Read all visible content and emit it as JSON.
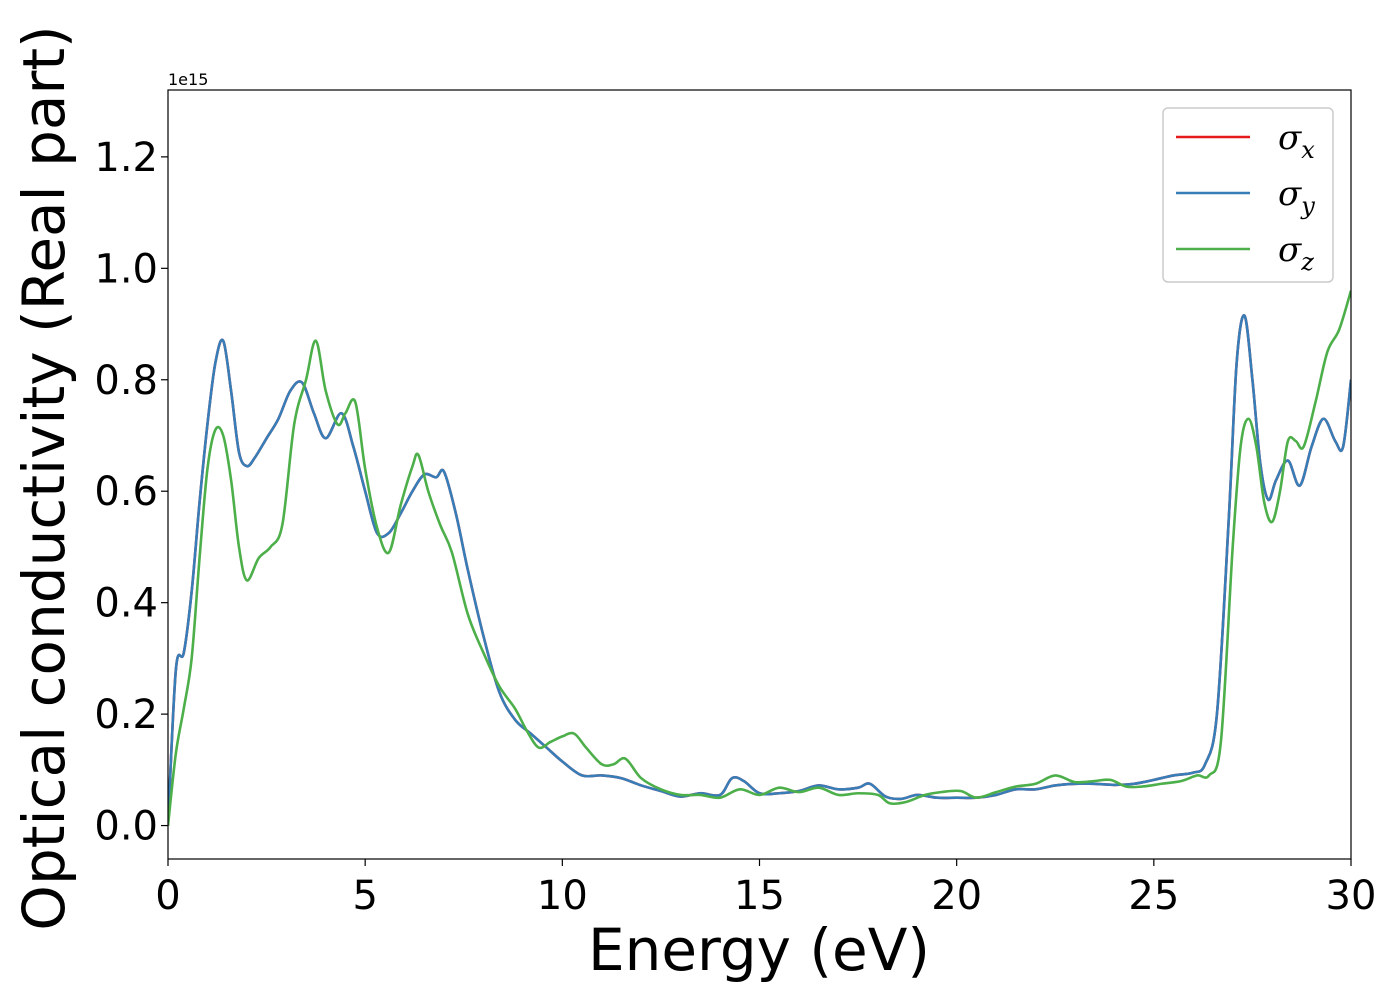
{
  "chart_data": {
    "type": "line",
    "title": "",
    "xlabel": "Energy (eV)",
    "ylabel": "Optical conductivity (Real part)",
    "y_offset_text": "1e15",
    "xlim": [
      0,
      30
    ],
    "ylim": [
      -0.06,
      1.32
    ],
    "x_ticks": [
      0,
      5,
      10,
      15,
      20,
      25,
      30
    ],
    "x_tick_labels": [
      "0",
      "5",
      "10",
      "15",
      "20",
      "25",
      "30"
    ],
    "y_ticks": [
      0.0,
      0.2,
      0.4,
      0.6,
      0.8,
      1.0,
      1.2
    ],
    "y_tick_labels": [
      "0.0",
      "0.2",
      "0.4",
      "0.6",
      "0.8",
      "1.0",
      "1.2"
    ],
    "grid": false,
    "legend_position": "top-right",
    "legend": [
      {
        "label": "σ",
        "sub": "x",
        "color": "#e41a1c"
      },
      {
        "label": "σ",
        "sub": "y",
        "color": "#377eb8"
      },
      {
        "label": "σ",
        "sub": "z",
        "color": "#4daf4a"
      }
    ],
    "series": [
      {
        "name": "σx",
        "color": "#e41a1c",
        "x": [
          0,
          0.2,
          0.4,
          0.6,
          0.8,
          1.0,
          1.2,
          1.4,
          1.6,
          1.8,
          2.0,
          2.2,
          2.5,
          2.8,
          3.1,
          3.4,
          3.7,
          4.0,
          4.4,
          4.7,
          5.0,
          5.3,
          5.6,
          5.9,
          6.2,
          6.5,
          6.8,
          7.0,
          7.3,
          7.6,
          8.0,
          8.4,
          8.8,
          9.2,
          9.6,
          10.0,
          10.5,
          11.0,
          11.5,
          12.0,
          12.5,
          13.0,
          13.5,
          14.0,
          14.3,
          14.6,
          15.0,
          15.5,
          16.0,
          16.5,
          17.0,
          17.5,
          17.8,
          18.2,
          18.6,
          19.0,
          19.5,
          20.0,
          20.5,
          21.0,
          21.5,
          22.0,
          22.5,
          23.0,
          23.5,
          24.0,
          24.5,
          25.0,
          25.5,
          26.0,
          26.3,
          26.6,
          26.9,
          27.1,
          27.3,
          27.5,
          27.7,
          27.9,
          28.1,
          28.4,
          28.7,
          29.0,
          29.3,
          29.6,
          29.8,
          30.0
        ],
        "y": [
          0.0,
          0.28,
          0.31,
          0.42,
          0.58,
          0.72,
          0.83,
          0.87,
          0.78,
          0.67,
          0.645,
          0.66,
          0.695,
          0.73,
          0.78,
          0.795,
          0.74,
          0.695,
          0.74,
          0.68,
          0.6,
          0.525,
          0.525,
          0.56,
          0.6,
          0.63,
          0.625,
          0.635,
          0.56,
          0.46,
          0.34,
          0.24,
          0.19,
          0.165,
          0.14,
          0.115,
          0.09,
          0.09,
          0.085,
          0.072,
          0.062,
          0.052,
          0.058,
          0.055,
          0.085,
          0.08,
          0.058,
          0.058,
          0.062,
          0.072,
          0.065,
          0.068,
          0.075,
          0.052,
          0.048,
          0.055,
          0.05,
          0.05,
          0.05,
          0.055,
          0.065,
          0.065,
          0.072,
          0.075,
          0.075,
          0.073,
          0.075,
          0.082,
          0.09,
          0.095,
          0.11,
          0.2,
          0.55,
          0.83,
          0.915,
          0.8,
          0.65,
          0.585,
          0.62,
          0.655,
          0.61,
          0.68,
          0.73,
          0.69,
          0.68,
          0.8
        ]
      },
      {
        "name": "σy",
        "color": "#377eb8",
        "x": [
          0,
          0.2,
          0.4,
          0.6,
          0.8,
          1.0,
          1.2,
          1.4,
          1.6,
          1.8,
          2.0,
          2.2,
          2.5,
          2.8,
          3.1,
          3.4,
          3.7,
          4.0,
          4.4,
          4.7,
          5.0,
          5.3,
          5.6,
          5.9,
          6.2,
          6.5,
          6.8,
          7.0,
          7.3,
          7.6,
          8.0,
          8.4,
          8.8,
          9.2,
          9.6,
          10.0,
          10.5,
          11.0,
          11.5,
          12.0,
          12.5,
          13.0,
          13.5,
          14.0,
          14.3,
          14.6,
          15.0,
          15.5,
          16.0,
          16.5,
          17.0,
          17.5,
          17.8,
          18.2,
          18.6,
          19.0,
          19.5,
          20.0,
          20.5,
          21.0,
          21.5,
          22.0,
          22.5,
          23.0,
          23.5,
          24.0,
          24.5,
          25.0,
          25.5,
          26.0,
          26.3,
          26.6,
          26.9,
          27.1,
          27.3,
          27.5,
          27.7,
          27.9,
          28.1,
          28.4,
          28.7,
          29.0,
          29.3,
          29.6,
          29.8,
          30.0
        ],
        "y": [
          0.0,
          0.28,
          0.31,
          0.42,
          0.58,
          0.72,
          0.83,
          0.87,
          0.78,
          0.67,
          0.645,
          0.66,
          0.695,
          0.73,
          0.78,
          0.795,
          0.74,
          0.695,
          0.74,
          0.68,
          0.6,
          0.525,
          0.525,
          0.56,
          0.6,
          0.63,
          0.625,
          0.635,
          0.56,
          0.46,
          0.34,
          0.24,
          0.19,
          0.165,
          0.14,
          0.115,
          0.09,
          0.09,
          0.085,
          0.072,
          0.062,
          0.052,
          0.058,
          0.055,
          0.085,
          0.08,
          0.058,
          0.058,
          0.062,
          0.072,
          0.065,
          0.068,
          0.075,
          0.052,
          0.048,
          0.055,
          0.05,
          0.05,
          0.05,
          0.055,
          0.065,
          0.065,
          0.072,
          0.075,
          0.075,
          0.073,
          0.075,
          0.082,
          0.09,
          0.095,
          0.11,
          0.2,
          0.55,
          0.83,
          0.915,
          0.8,
          0.65,
          0.585,
          0.62,
          0.655,
          0.61,
          0.68,
          0.73,
          0.69,
          0.68,
          0.8
        ]
      },
      {
        "name": "σz",
        "color": "#4daf4a",
        "x": [
          0,
          0.2,
          0.4,
          0.6,
          0.8,
          1.0,
          1.2,
          1.4,
          1.6,
          1.8,
          2.0,
          2.3,
          2.6,
          2.9,
          3.2,
          3.5,
          3.75,
          4.0,
          4.3,
          4.5,
          4.75,
          5.0,
          5.3,
          5.6,
          5.9,
          6.2,
          6.35,
          6.6,
          6.9,
          7.2,
          7.6,
          8.0,
          8.4,
          8.8,
          9.1,
          9.4,
          9.7,
          10.0,
          10.3,
          10.6,
          11.0,
          11.3,
          11.6,
          12.0,
          12.5,
          13.0,
          13.5,
          14.0,
          14.5,
          15.0,
          15.5,
          16.0,
          16.5,
          17.0,
          17.5,
          18.0,
          18.3,
          18.7,
          19.2,
          19.6,
          20.1,
          20.5,
          21.0,
          21.5,
          22.0,
          22.5,
          23.0,
          23.5,
          23.9,
          24.3,
          24.7,
          25.2,
          25.7,
          26.1,
          26.4,
          26.7,
          27.0,
          27.2,
          27.4,
          27.6,
          27.8,
          28.0,
          28.2,
          28.4,
          28.6,
          28.8,
          29.1,
          29.4,
          29.7,
          30.0
        ],
        "y": [
          0.0,
          0.13,
          0.21,
          0.3,
          0.48,
          0.64,
          0.71,
          0.7,
          0.62,
          0.5,
          0.44,
          0.48,
          0.5,
          0.54,
          0.72,
          0.8,
          0.87,
          0.78,
          0.72,
          0.74,
          0.76,
          0.64,
          0.535,
          0.49,
          0.575,
          0.645,
          0.665,
          0.6,
          0.54,
          0.49,
          0.38,
          0.31,
          0.25,
          0.21,
          0.17,
          0.14,
          0.15,
          0.16,
          0.165,
          0.14,
          0.11,
          0.11,
          0.12,
          0.085,
          0.065,
          0.055,
          0.055,
          0.05,
          0.065,
          0.055,
          0.068,
          0.06,
          0.068,
          0.055,
          0.058,
          0.055,
          0.04,
          0.042,
          0.055,
          0.06,
          0.062,
          0.05,
          0.06,
          0.07,
          0.075,
          0.09,
          0.078,
          0.08,
          0.082,
          0.07,
          0.07,
          0.075,
          0.08,
          0.09,
          0.09,
          0.15,
          0.5,
          0.68,
          0.73,
          0.68,
          0.58,
          0.545,
          0.6,
          0.69,
          0.69,
          0.68,
          0.76,
          0.85,
          0.89,
          0.96
        ]
      }
    ]
  }
}
